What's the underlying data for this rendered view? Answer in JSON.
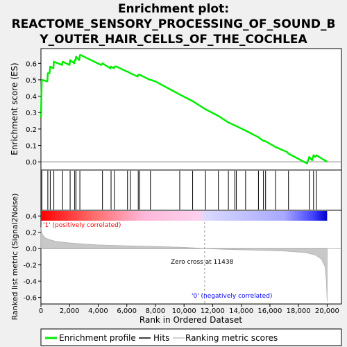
{
  "chart_data": {
    "type": "line",
    "title_line1": "Enrichment plot:",
    "title_line2": "REACTOME_SENSORY_PROCESSING_OF_SOUND_B",
    "title_line3": "Y_OUTER_HAIR_CELLS_OF_THE_COCHLEA",
    "es_panel": {
      "ylabel": "Enrichment score (ES)",
      "ylim": [
        -0.05,
        0.69
      ],
      "yticks": [
        "0.0",
        "0.1",
        "0.2",
        "0.3",
        "0.4",
        "0.5",
        "0.6"
      ],
      "ytick_values": [
        0.0,
        0.1,
        0.2,
        0.3,
        0.4,
        0.5,
        0.6
      ],
      "line_color": "#00ee00",
      "es_profile": [
        [
          0,
          0.27
        ],
        [
          60,
          0.5
        ],
        [
          450,
          0.49
        ],
        [
          480,
          0.54
        ],
        [
          600,
          0.54
        ],
        [
          650,
          0.58
        ],
        [
          870,
          0.57
        ],
        [
          900,
          0.61
        ],
        [
          1480,
          0.59
        ],
        [
          1520,
          0.61
        ],
        [
          2000,
          0.59
        ],
        [
          2040,
          0.62
        ],
        [
          2330,
          0.6
        ],
        [
          2360,
          0.62
        ],
        [
          2430,
          0.62
        ],
        [
          2450,
          0.64
        ],
        [
          2680,
          0.62
        ],
        [
          2720,
          0.65
        ],
        [
          2800,
          0.65
        ],
        [
          4200,
          0.59
        ],
        [
          4300,
          0.6
        ],
        [
          4850,
          0.57
        ],
        [
          4900,
          0.58
        ],
        [
          5100,
          0.57
        ],
        [
          5130,
          0.58
        ],
        [
          5300,
          0.58
        ],
        [
          6000,
          0.55
        ],
        [
          6050,
          0.55
        ],
        [
          6250,
          0.54
        ],
        [
          6750,
          0.52
        ],
        [
          6800,
          0.53
        ],
        [
          6900,
          0.53
        ],
        [
          7600,
          0.5
        ],
        [
          7650,
          0.5
        ],
        [
          8000,
          0.49
        ],
        [
          9700,
          0.41
        ],
        [
          10600,
          0.37
        ],
        [
          11500,
          0.32
        ],
        [
          12400,
          0.28
        ],
        [
          13100,
          0.24
        ],
        [
          13600,
          0.22
        ],
        [
          14300,
          0.19
        ],
        [
          15200,
          0.15
        ],
        [
          15500,
          0.13
        ],
        [
          15700,
          0.125
        ],
        [
          16400,
          0.09
        ],
        [
          17200,
          0.06
        ],
        [
          17300,
          0.05
        ],
        [
          18600,
          -0.01
        ],
        [
          18750,
          0.03
        ],
        [
          18950,
          0.01
        ],
        [
          19050,
          0.04
        ],
        [
          19150,
          0.03
        ],
        [
          19250,
          0.04
        ],
        [
          20000,
          0.0
        ]
      ]
    },
    "hits_panel": {
      "hit_positions": [
        60,
        480,
        650,
        900,
        1520,
        2040,
        2360,
        2450,
        2720,
        4300,
        4900,
        5130,
        6050,
        6250,
        6800,
        6900,
        7650,
        9700,
        10600,
        11500,
        12400,
        13100,
        13550,
        13650,
        14300,
        15200,
        15550,
        15700,
        16400,
        17300,
        18750,
        19050,
        19250
      ]
    },
    "rank_panel": {
      "ylabel": "Ranked list metric (Signal2Noise)",
      "ylim": [
        -0.68,
        0.47
      ],
      "yticks": [
        "0.4",
        "0.2",
        "0.0",
        "-0.2",
        "-0.4",
        "-0.6"
      ],
      "ytick_values": [
        0.4,
        0.2,
        0.0,
        -0.2,
        -0.4,
        -0.6
      ],
      "metric_curve": [
        [
          0,
          0.26
        ],
        [
          100,
          0.17
        ],
        [
          300,
          0.13
        ],
        [
          600,
          0.11
        ],
        [
          1000,
          0.09
        ],
        [
          2000,
          0.07
        ],
        [
          3000,
          0.055
        ],
        [
          4000,
          0.045
        ],
        [
          6000,
          0.035
        ],
        [
          8000,
          0.025
        ],
        [
          10000,
          0.015
        ],
        [
          11438,
          0.0
        ],
        [
          13000,
          -0.01
        ],
        [
          15000,
          -0.02
        ],
        [
          17000,
          -0.03
        ],
        [
          18500,
          -0.05
        ],
        [
          19200,
          -0.08
        ],
        [
          19600,
          -0.13
        ],
        [
          19850,
          -0.22
        ],
        [
          19950,
          -0.4
        ],
        [
          20000,
          -0.65
        ]
      ],
      "zero_cross_label": "Zero cross at 11438",
      "zero_cross": 11438,
      "pos_label": "'1' (positively correlated)",
      "neg_label": "'0' (negatively correlated)",
      "pos_color": "#ff0000",
      "neg_color": "#0000ff"
    },
    "xlabel": "Rank in Ordered Dataset",
    "xlim": [
      0,
      21000
    ],
    "xticks": [
      "0",
      "2,000",
      "4,000",
      "6,000",
      "8,000",
      "10,000",
      "12,000",
      "14,000",
      "16,000",
      "18,000",
      "20,000"
    ],
    "xtick_values": [
      0,
      2000,
      4000,
      6000,
      8000,
      10000,
      12000,
      14000,
      16000,
      18000,
      20000
    ],
    "legend": {
      "items": [
        {
          "label": "Enrichment profile",
          "color": "#00ee00"
        },
        {
          "label": "Hits",
          "color": "#000000"
        },
        {
          "label": "Ranking metric scores",
          "color": "#c0c0c0"
        }
      ]
    }
  }
}
